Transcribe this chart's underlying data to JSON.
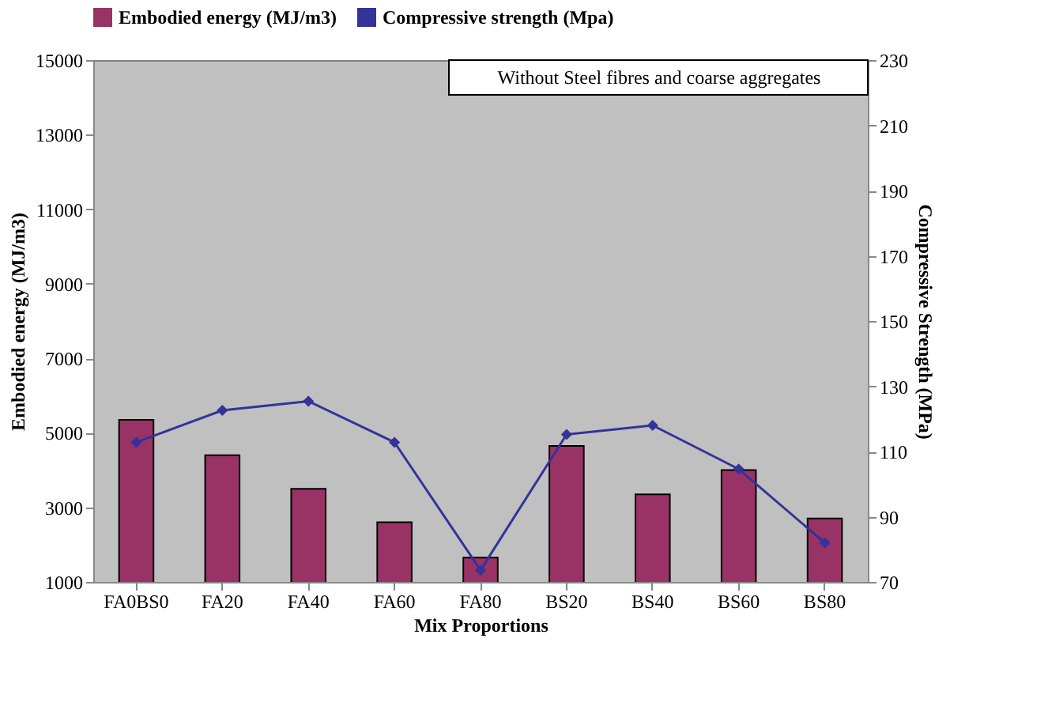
{
  "chart_data": {
    "type": "bar",
    "xlabel": "Mix Proportions",
    "ylabel": "Embodied energy (MJ/m3)",
    "y2label": "Compressive Strength (MPa)",
    "categories": [
      "FA0BS0",
      "FA20",
      "FA40",
      "FA60",
      "FA80",
      "BS20",
      "BS40",
      "BS60",
      "BS80"
    ],
    "series": [
      {
        "name": "Embodied energy (MJ/m3)",
        "color": "#993366",
        "values": [
          5350,
          4400,
          3500,
          2600,
          1650,
          4650,
          3350,
          4000,
          2700
        ]
      },
      {
        "name": "Compressive strength (Mpa)",
        "type": "line",
        "axis": "y2",
        "color": "#333399",
        "marker": "diamond",
        "values": [
          112.8,
          122.6,
          125.4,
          112.8,
          73.6,
          115.2,
          118,
          104.6,
          82
        ]
      }
    ],
    "ylim": [
      1000,
      15000
    ],
    "yticks": [
      1000,
      3000,
      5000,
      7000,
      9000,
      11000,
      13000,
      15000
    ],
    "y2lim": [
      70,
      230
    ],
    "y2ticks": [
      70,
      90,
      110,
      130,
      150,
      170,
      190,
      210,
      230
    ],
    "annotations": [
      "Without Steel fibres and coarse aggregates"
    ],
    "legend": "top",
    "grid": false
  }
}
